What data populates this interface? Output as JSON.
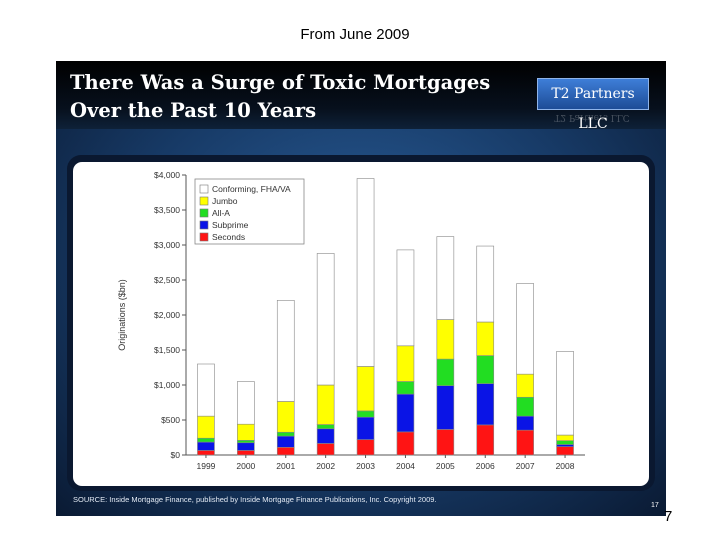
{
  "caption": "From June 2009",
  "page_number": "7",
  "slide": {
    "title": "There Was a Surge of Toxic Mortgages Over the Past 10 Years",
    "brand": "T2 Partners LLC",
    "source": "SOURCE: Inside Mortgage Finance, published by Inside Mortgage Finance Publications, Inc. Copyright 2009.",
    "slide_number": "17"
  },
  "colors": {
    "Conforming, FHA/VA": "#ffffff",
    "Jumbo": "#ffff00",
    "Alt-A": "#22dd22",
    "Subprime": "#0a14e6",
    "Seconds": "#ff1414"
  },
  "chart_data": {
    "type": "bar",
    "stacked": true,
    "categories": [
      "1999",
      "2000",
      "2001",
      "2002",
      "2003",
      "2004",
      "2005",
      "2006",
      "2007",
      "2008"
    ],
    "ylabel": "Originations ($bn)",
    "ylim": [
      0,
      4000
    ],
    "yticks": [
      0,
      500,
      1000,
      1500,
      2000,
      2500,
      3000,
      3500,
      4000
    ],
    "ytick_labels": [
      "$0",
      "$500",
      "$1,000",
      "$1,500",
      "$2,000",
      "$2,500",
      "$3,000",
      "$3,500",
      "$4,000"
    ],
    "legend_position": "top-left",
    "series": [
      {
        "name": "Seconds",
        "values": [
          65,
          65,
          110,
          165,
          220,
          330,
          365,
          430,
          355,
          120
        ]
      },
      {
        "name": "Subprime",
        "values": [
          120,
          110,
          160,
          210,
          320,
          540,
          625,
          590,
          200,
          30
        ]
      },
      {
        "name": "All-A",
        "values": [
          55,
          35,
          55,
          60,
          90,
          180,
          380,
          400,
          270,
          55
        ]
      },
      {
        "name": "Jumbo",
        "values": [
          315,
          230,
          440,
          565,
          635,
          510,
          565,
          480,
          330,
          80
        ]
      },
      {
        "name": "Conforming, FHA/VA",
        "values": [
          745,
          610,
          1445,
          1880,
          2685,
          1370,
          1185,
          1085,
          1295,
          1195
        ]
      }
    ]
  }
}
